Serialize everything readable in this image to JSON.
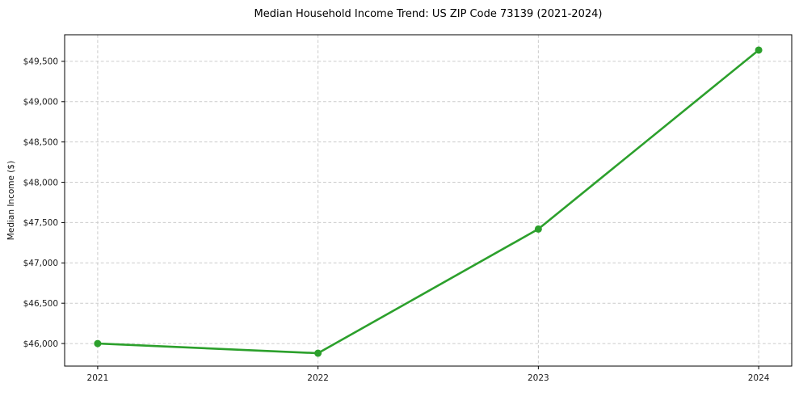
{
  "chart_data": {
    "type": "line",
    "title": "Median Household Income Trend: US ZIP Code 73139 (2021-2024)",
    "xlabel": "",
    "ylabel": "Median Income ($)",
    "categories": [
      "2021",
      "2022",
      "2023",
      "2024"
    ],
    "series": [
      {
        "name": "Median Household Income",
        "values": [
          46000,
          45880,
          47420,
          49640
        ]
      }
    ],
    "ylim": [
      45720,
      49830
    ],
    "yticks": [
      46000,
      46500,
      47000,
      47500,
      48000,
      48500,
      49000,
      49500
    ],
    "ytick_prefix": "$",
    "grid": true,
    "grid_linestyle": "dashed",
    "legend_position": "none",
    "colors": {
      "line": "#2ca02c",
      "marker": "#2ca02c",
      "grid": "#cbcbcb",
      "axis": "#000000",
      "tick_text": "#1a1a1a",
      "background": "#ffffff"
    }
  }
}
